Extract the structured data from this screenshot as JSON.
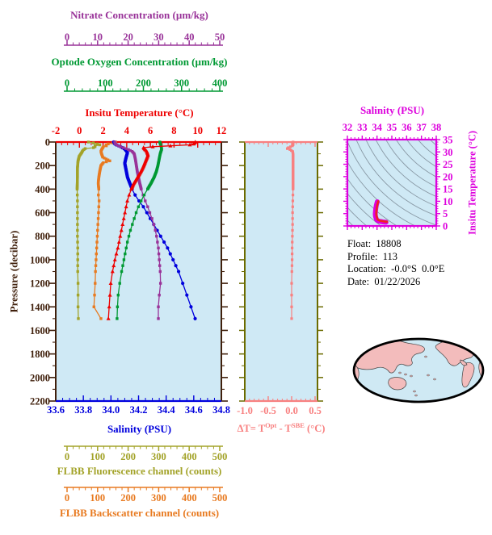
{
  "panels": {
    "nitrate_axis": {
      "title": "Nitrate Concentration (µm/kg)",
      "ticks": [
        "0",
        "10",
        "20",
        "30",
        "40",
        "50"
      ],
      "color": "#993399"
    },
    "oxygen_axis": {
      "title": "Optode Oxygen Concentration (µm/kg)",
      "ticks": [
        "0",
        "100",
        "200",
        "300",
        "400"
      ],
      "color": "#009933"
    },
    "temperature_axis": {
      "title": "Insitu Temperature (°C)",
      "ticks": [
        "-2",
        "0",
        "2",
        "4",
        "6",
        "8",
        "10",
        "12"
      ],
      "color": "#ee0000"
    },
    "pressure_axis": {
      "title": "Pressure (decibar)",
      "ticks": [
        "0",
        "200",
        "400",
        "600",
        "800",
        "1000",
        "1200",
        "1400",
        "1600",
        "1800",
        "2000",
        "2200"
      ],
      "color": "#40200c"
    },
    "salinity_axis": {
      "title": "Salinity (PSU)",
      "ticks": [
        "33.6",
        "33.8",
        "34.0",
        "34.2",
        "34.4",
        "34.6",
        "34.8"
      ],
      "color": "#0000dd"
    },
    "fluorescence_axis": {
      "title": "FLBB Fluorescence channel (counts)",
      "ticks": [
        "0",
        "100",
        "200",
        "300",
        "400",
        "500"
      ],
      "color": "#a3a329"
    },
    "backscatter_axis": {
      "title": "FLBB Backscatter channel (counts)",
      "ticks": [
        "0",
        "100",
        "200",
        "300",
        "400",
        "500"
      ],
      "color": "#e87a20"
    },
    "delta_axis": {
      "title_parts": {
        "prefix": "ΔT= T",
        "sup1": "Opt",
        "mid": " - T",
        "sup2": "SBE",
        "suffix": " (°C)"
      },
      "ticks": [
        "-1.0",
        "-0.5",
        "0.0",
        "0.5"
      ],
      "color": "#f88080",
      "side_color": "#6b6b00"
    },
    "ts_axis": {
      "title": "Salinity (PSU)",
      "xticks": [
        "32",
        "33",
        "34",
        "35",
        "36",
        "37",
        "38"
      ],
      "ytitle": "Insitu Temperature (°C)",
      "yticks": [
        "0",
        "5",
        "10",
        "15",
        "20",
        "25",
        "30",
        "35"
      ],
      "color": "#dd00dd"
    }
  },
  "info": {
    "lines": [
      {
        "label": "Float:",
        "value": "18808"
      },
      {
        "label": "Profile:",
        "value": "113"
      },
      {
        "label": "Location:",
        "value": "-0.0°S  0.0°E"
      },
      {
        "label": "Date:",
        "value": "01/22/2026"
      }
    ]
  },
  "colors": {
    "plot_bg": "#cfe9f5",
    "frame_brown": "#40200c",
    "temperature": "#ee0000",
    "oxygen": "#009933",
    "salinity": "#0000dd",
    "nitrate": "#993399",
    "fluorescence": "#a3a329",
    "backscatter": "#e87a20",
    "delta": "#f88080",
    "delta_side": "#6b6b00",
    "magenta": "#dd00dd",
    "contour": "#8898a4",
    "map_land": "#f3bcbc",
    "map_ocean": "#cfe9f4"
  },
  "chart_data": [
    {
      "type": "line",
      "id": "profile-panel",
      "ylabel": "Pressure (decibar)",
      "ylim": [
        0,
        2200
      ],
      "y_inverted": true,
      "series": [
        {
          "name": "FLBB Fluorescence channel (counts)",
          "axis_range": [
            0,
            500
          ],
          "color": "#a3a329",
          "marker": "square",
          "points": [
            [
              0,
              70
            ],
            [
              12,
              95
            ],
            [
              25,
              108
            ],
            [
              35,
              85
            ],
            [
              45,
              98
            ],
            [
              55,
              60
            ],
            [
              70,
              52
            ],
            [
              90,
              48
            ],
            [
              120,
              40
            ],
            [
              160,
              36
            ],
            [
              220,
              34
            ],
            [
              300,
              34
            ],
            [
              400,
              33
            ],
            [
              500,
              34
            ],
            [
              600,
              34
            ],
            [
              700,
              34
            ],
            [
              800,
              34
            ],
            [
              900,
              35
            ],
            [
              1000,
              35
            ],
            [
              1100,
              35
            ],
            [
              1200,
              36
            ],
            [
              1300,
              36
            ],
            [
              1400,
              36
            ],
            [
              1500,
              37
            ]
          ]
        },
        {
          "name": "FLBB Backscatter channel (counts)",
          "axis_range": [
            0,
            500
          ],
          "color": "#e87a20",
          "marker": "square",
          "points": [
            [
              0,
              159
            ],
            [
              10,
              148
            ],
            [
              20,
              126
            ],
            [
              30,
              131
            ],
            [
              40,
              119
            ],
            [
              60,
              114
            ],
            [
              80,
              111
            ],
            [
              100,
              113
            ],
            [
              130,
              117
            ],
            [
              160,
              140
            ],
            [
              175,
              119
            ],
            [
              200,
              111
            ],
            [
              250,
              107
            ],
            [
              300,
              104
            ],
            [
              350,
              102
            ],
            [
              400,
              104
            ],
            [
              430,
              112
            ],
            [
              460,
              98
            ],
            [
              500,
              105
            ],
            [
              600,
              103
            ],
            [
              700,
              101
            ],
            [
              800,
              99
            ],
            [
              900,
              97
            ],
            [
              1000,
              95
            ],
            [
              1100,
              93
            ],
            [
              1200,
              92
            ],
            [
              1300,
              90
            ],
            [
              1400,
              88
            ],
            [
              1500,
              111
            ]
          ]
        },
        {
          "name": "Salinity (PSU)",
          "axis_range": [
            33.6,
            34.8
          ],
          "color": "#0000dd",
          "marker": "circle",
          "points": [
            [
              0,
              34.02
            ],
            [
              20,
              34.03
            ],
            [
              40,
              34.07
            ],
            [
              60,
              34.1
            ],
            [
              90,
              34.12
            ],
            [
              130,
              34.11
            ],
            [
              180,
              34.1
            ],
            [
              240,
              34.11
            ],
            [
              300,
              34.12
            ],
            [
              360,
              34.14
            ],
            [
              420,
              34.16
            ],
            [
              480,
              34.19
            ],
            [
              540,
              34.23
            ],
            [
              600,
              34.26
            ],
            [
              660,
              34.29
            ],
            [
              720,
              34.32
            ],
            [
              780,
              34.35
            ],
            [
              840,
              34.38
            ],
            [
              900,
              34.41
            ],
            [
              1000,
              34.45
            ],
            [
              1100,
              34.49
            ],
            [
              1200,
              34.52
            ],
            [
              1300,
              34.55
            ],
            [
              1400,
              34.58
            ],
            [
              1500,
              34.61
            ]
          ]
        },
        {
          "name": "Nitrate Concentration (µm/kg)",
          "axis_range": [
            0,
            50
          ],
          "color": "#993399",
          "marker": "square",
          "points": [
            [
              0,
              15.6
            ],
            [
              20,
              15.9
            ],
            [
              40,
              17.5
            ],
            [
              60,
              19.8
            ],
            [
              80,
              21.3
            ],
            [
              100,
              22.0
            ],
            [
              150,
              22.4
            ],
            [
              200,
              22.7
            ],
            [
              250,
              23.0
            ],
            [
              300,
              23.4
            ],
            [
              350,
              23.8
            ],
            [
              400,
              24.3
            ],
            [
              450,
              24.9
            ],
            [
              500,
              25.6
            ],
            [
              550,
              26.4
            ],
            [
              600,
              27.1
            ],
            [
              650,
              27.8
            ],
            [
              700,
              28.4
            ],
            [
              750,
              28.9
            ],
            [
              800,
              29.3
            ],
            [
              850,
              29.6
            ],
            [
              900,
              29.9
            ],
            [
              1000,
              30.2
            ],
            [
              1100,
              30.5
            ],
            [
              1200,
              30.6
            ],
            [
              1300,
              30.2
            ],
            [
              1400,
              29.9
            ],
            [
              1500,
              29.9
            ]
          ]
        },
        {
          "name": "Optode Oxygen Concentration (µm/kg)",
          "axis_range": [
            0,
            400
          ],
          "color": "#009933",
          "marker": "square",
          "points": [
            [
              0,
              243
            ],
            [
              30,
              246
            ],
            [
              60,
              248
            ],
            [
              100,
              244
            ],
            [
              150,
              241
            ],
            [
              200,
              238
            ],
            [
              250,
              234
            ],
            [
              300,
              228
            ],
            [
              350,
              220
            ],
            [
              400,
              211
            ],
            [
              450,
              202
            ],
            [
              500,
              194
            ],
            [
              550,
              187
            ],
            [
              600,
              181
            ],
            [
              650,
              176
            ],
            [
              700,
              171
            ],
            [
              750,
              166
            ],
            [
              800,
              162
            ],
            [
              850,
              158
            ],
            [
              900,
              155
            ],
            [
              950,
              152
            ],
            [
              1000,
              149
            ],
            [
              1100,
              143
            ],
            [
              1200,
              138
            ],
            [
              1300,
              134
            ],
            [
              1400,
              132
            ],
            [
              1500,
              131
            ]
          ]
        },
        {
          "name": "Insitu Temperature (°C)",
          "axis_range": [
            -2,
            12
          ],
          "color": "#ee0000",
          "marker": "triangle",
          "points": [
            [
              0,
              9.8
            ],
            [
              15,
              9.7
            ],
            [
              25,
              9.3
            ],
            [
              35,
              7.0
            ],
            [
              45,
              5.4
            ],
            [
              60,
              5.5
            ],
            [
              80,
              5.7
            ],
            [
              110,
              5.8
            ],
            [
              160,
              5.6
            ],
            [
              210,
              5.4
            ],
            [
              260,
              5.15
            ],
            [
              310,
              4.85
            ],
            [
              360,
              4.55
            ],
            [
              420,
              4.3
            ],
            [
              500,
              4.05
            ],
            [
              600,
              3.85
            ],
            [
              700,
              3.65
            ],
            [
              800,
              3.45
            ],
            [
              900,
              3.25
            ],
            [
              1000,
              3.0
            ],
            [
              1100,
              2.8
            ],
            [
              1200,
              2.65
            ],
            [
              1350,
              2.55
            ],
            [
              1500,
              2.45
            ]
          ]
        }
      ]
    },
    {
      "type": "line",
      "id": "delta-t-panel",
      "xlabel": "ΔT= T^Opt - T^SBE (°C)",
      "xlim": [
        -1.05,
        0.55
      ],
      "ylim": [
        0,
        2200
      ],
      "y_inverted": true,
      "color": "#f88080",
      "marker": "square",
      "points": [
        [
          0,
          0.03
        ],
        [
          25,
          0.03
        ],
        [
          35,
          0.01
        ],
        [
          45,
          -0.06
        ],
        [
          55,
          -0.1
        ],
        [
          65,
          -0.03
        ],
        [
          80,
          0.02
        ],
        [
          100,
          0.03
        ],
        [
          200,
          0.03
        ],
        [
          300,
          0.03
        ],
        [
          400,
          0.03
        ],
        [
          500,
          0.025
        ],
        [
          600,
          0.02
        ],
        [
          700,
          0.02
        ],
        [
          800,
          0.015
        ],
        [
          900,
          0.01
        ],
        [
          1000,
          0.01
        ],
        [
          1100,
          0.005
        ],
        [
          1200,
          0.0
        ],
        [
          1300,
          0.0
        ],
        [
          1400,
          0.0
        ],
        [
          1500,
          0.0
        ]
      ]
    },
    {
      "type": "line",
      "id": "ts-panel",
      "xlabel": "Salinity (PSU)",
      "ylabel": "Insitu Temperature (°C)",
      "xlim": [
        32,
        38
      ],
      "ylim": [
        0,
        35
      ],
      "color": "#dd00dd",
      "overlay_color": "#ee2222",
      "contours": "isopycnals",
      "points": [
        [
          34.02,
          9.8
        ],
        [
          33.96,
          8.5
        ],
        [
          33.92,
          7.2
        ],
        [
          33.89,
          5.8
        ],
        [
          33.88,
          4.8
        ],
        [
          33.9,
          3.9
        ],
        [
          33.93,
          3.2
        ],
        [
          33.97,
          2.6
        ],
        [
          34.03,
          2.2
        ],
        [
          34.12,
          1.95
        ],
        [
          34.25,
          1.8
        ],
        [
          34.4,
          1.65
        ],
        [
          34.52,
          1.55
        ],
        [
          34.61,
          1.5
        ]
      ]
    }
  ]
}
